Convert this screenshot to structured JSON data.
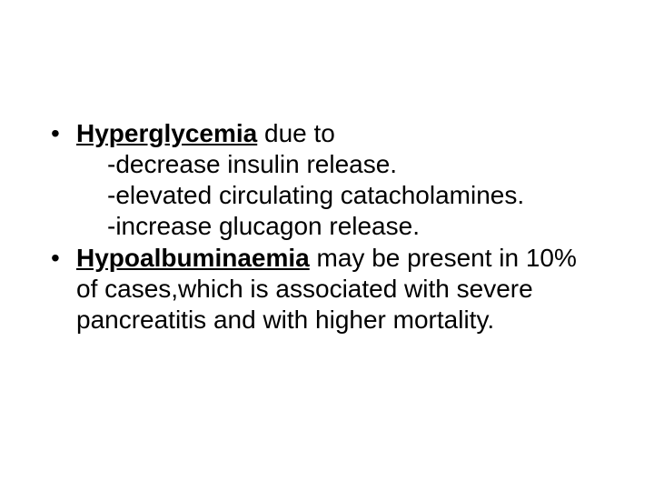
{
  "typography": {
    "font_family": "Arial, Helvetica, sans-serif",
    "font_size_pt": 21,
    "line_height": 1.22,
    "text_color": "#000000",
    "background_color": "#ffffff"
  },
  "bullets": [
    {
      "term": "Hyperglycemia",
      "after_term": " due to",
      "subs": [
        "-decrease insulin release.",
        "-elevated circulating catacholamines.",
        "-increase glucagon release."
      ]
    },
    {
      "term": "Hypoalbuminaemia",
      "after_term": " may be present in 10% of cases,which is associated with severe pancreatitis and with higher mortality."
    }
  ]
}
